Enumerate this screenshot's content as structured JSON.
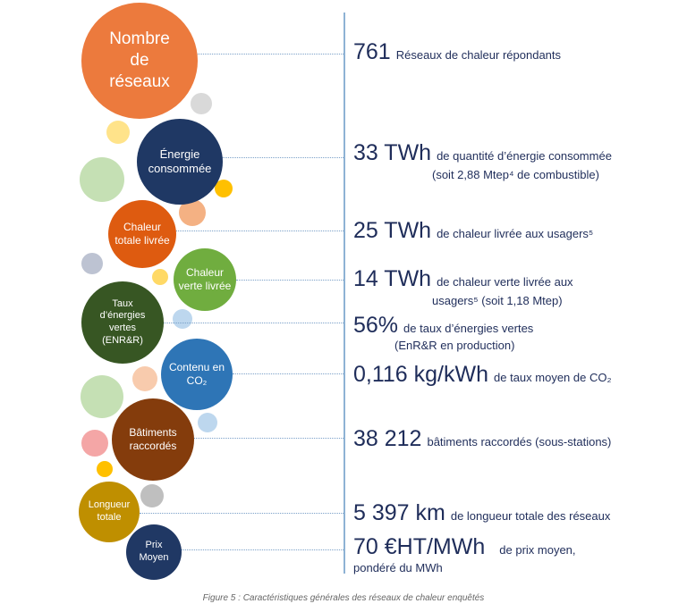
{
  "bubbles": {
    "reseaux": "Nombre\nde\nréseaux",
    "energie": "Énergie\nconsommée",
    "chaleur_totale": "Chaleur\ntotale livrée",
    "chaleur_verte": "Chaleur\nverte livrée",
    "taux": "Taux\nd’énergies\nvertes\n(ENR&R)",
    "contenu": "Contenu en\nCO₂",
    "batiments": "Bâtiments\nraccordés",
    "longueur": "Longueur\ntotale",
    "prix": "Prix\nMoyen"
  },
  "stats": {
    "reseaux_value": "761",
    "reseaux_text": "Réseaux de chaleur répondants",
    "energie_value": "33 TWh",
    "energie_text": "de quantité d’énergie consommée",
    "energie_sub": "(soit 2,88 Mtep⁴ de combustible)",
    "chaleur_value": "25 TWh",
    "chaleur_text": "de chaleur livrée aux usagers⁵",
    "verte_value": "14 TWh",
    "verte_text": "de chaleur verte livrée aux",
    "verte_sub": "usagers⁵ (soit 1,18 Mtep)",
    "taux_value": "56%",
    "taux_text": "de taux d’énergies vertes",
    "taux_sub": "(EnR&R en production)",
    "co2_value": "0,116 kg/kWh",
    "co2_text": "de taux moyen de CO₂",
    "batiments_value": "38 212",
    "batiments_text": "bâtiments raccordés (sous-stations)",
    "longueur_value": "5 397 km",
    "longueur_text": "de longueur totale des réseaux",
    "prix_value": "70 €HT/MWh",
    "prix_text": "de prix moyen,",
    "prix_sub": "pondéré du MWh"
  },
  "caption": "Figure 5 : Caractéristiques générales des réseaux de chaleur enquêtés",
  "colors": {
    "orange": "#ec7a3d",
    "navy": "#1f3864",
    "deep_orange": "#de5b10",
    "green": "#70ad3f",
    "dark_green": "#375623",
    "blue": "#2e75b6",
    "brown": "#843c0c",
    "gold": "#bf8f00",
    "dark_blue": "#203864"
  }
}
